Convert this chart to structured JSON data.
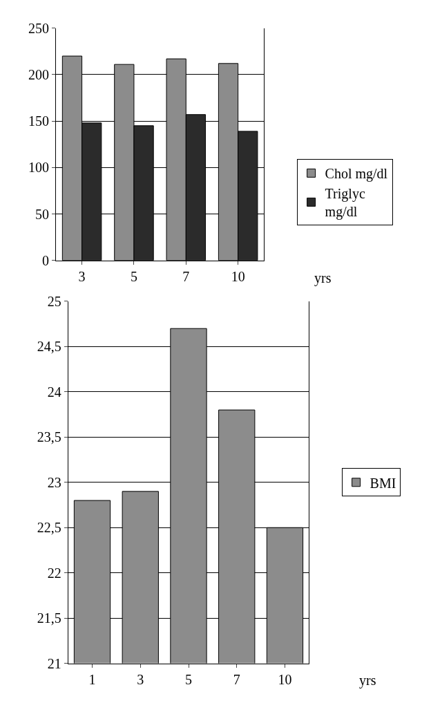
{
  "chart_data": [
    {
      "type": "bar",
      "xlabel": "yrs",
      "categories": [
        "3",
        "5",
        "7",
        "10"
      ],
      "series": [
        {
          "name": "Chol mg/dl",
          "color": "#8c8c8c",
          "values": [
            220,
            211,
            217,
            212
          ]
        },
        {
          "name": "Triglyc\nmg/dl",
          "color": "#2b2b2b",
          "values": [
            148,
            145,
            157,
            139
          ]
        }
      ],
      "ylim": [
        0,
        250
      ],
      "yticks": [
        0,
        50,
        100,
        150,
        200,
        250
      ],
      "grid": "y",
      "legend": "right"
    },
    {
      "type": "bar",
      "xlabel": "yrs",
      "categories": [
        "1",
        "3",
        "5",
        "7",
        "10"
      ],
      "series": [
        {
          "name": "BMI",
          "color": "#8c8c8c",
          "values": [
            22.8,
            22.9,
            24.7,
            23.8,
            22.5
          ]
        }
      ],
      "ylim": [
        21,
        25
      ],
      "yticks": [
        21,
        {
          "value": 21.5,
          "label": "21,5"
        },
        22,
        {
          "value": 22.5,
          "label": "22,5"
        },
        23,
        {
          "value": 23.5,
          "label": "23,5"
        },
        24,
        {
          "value": 24.5,
          "label": "24,5"
        },
        25
      ],
      "grid": "y",
      "legend": "right"
    }
  ]
}
